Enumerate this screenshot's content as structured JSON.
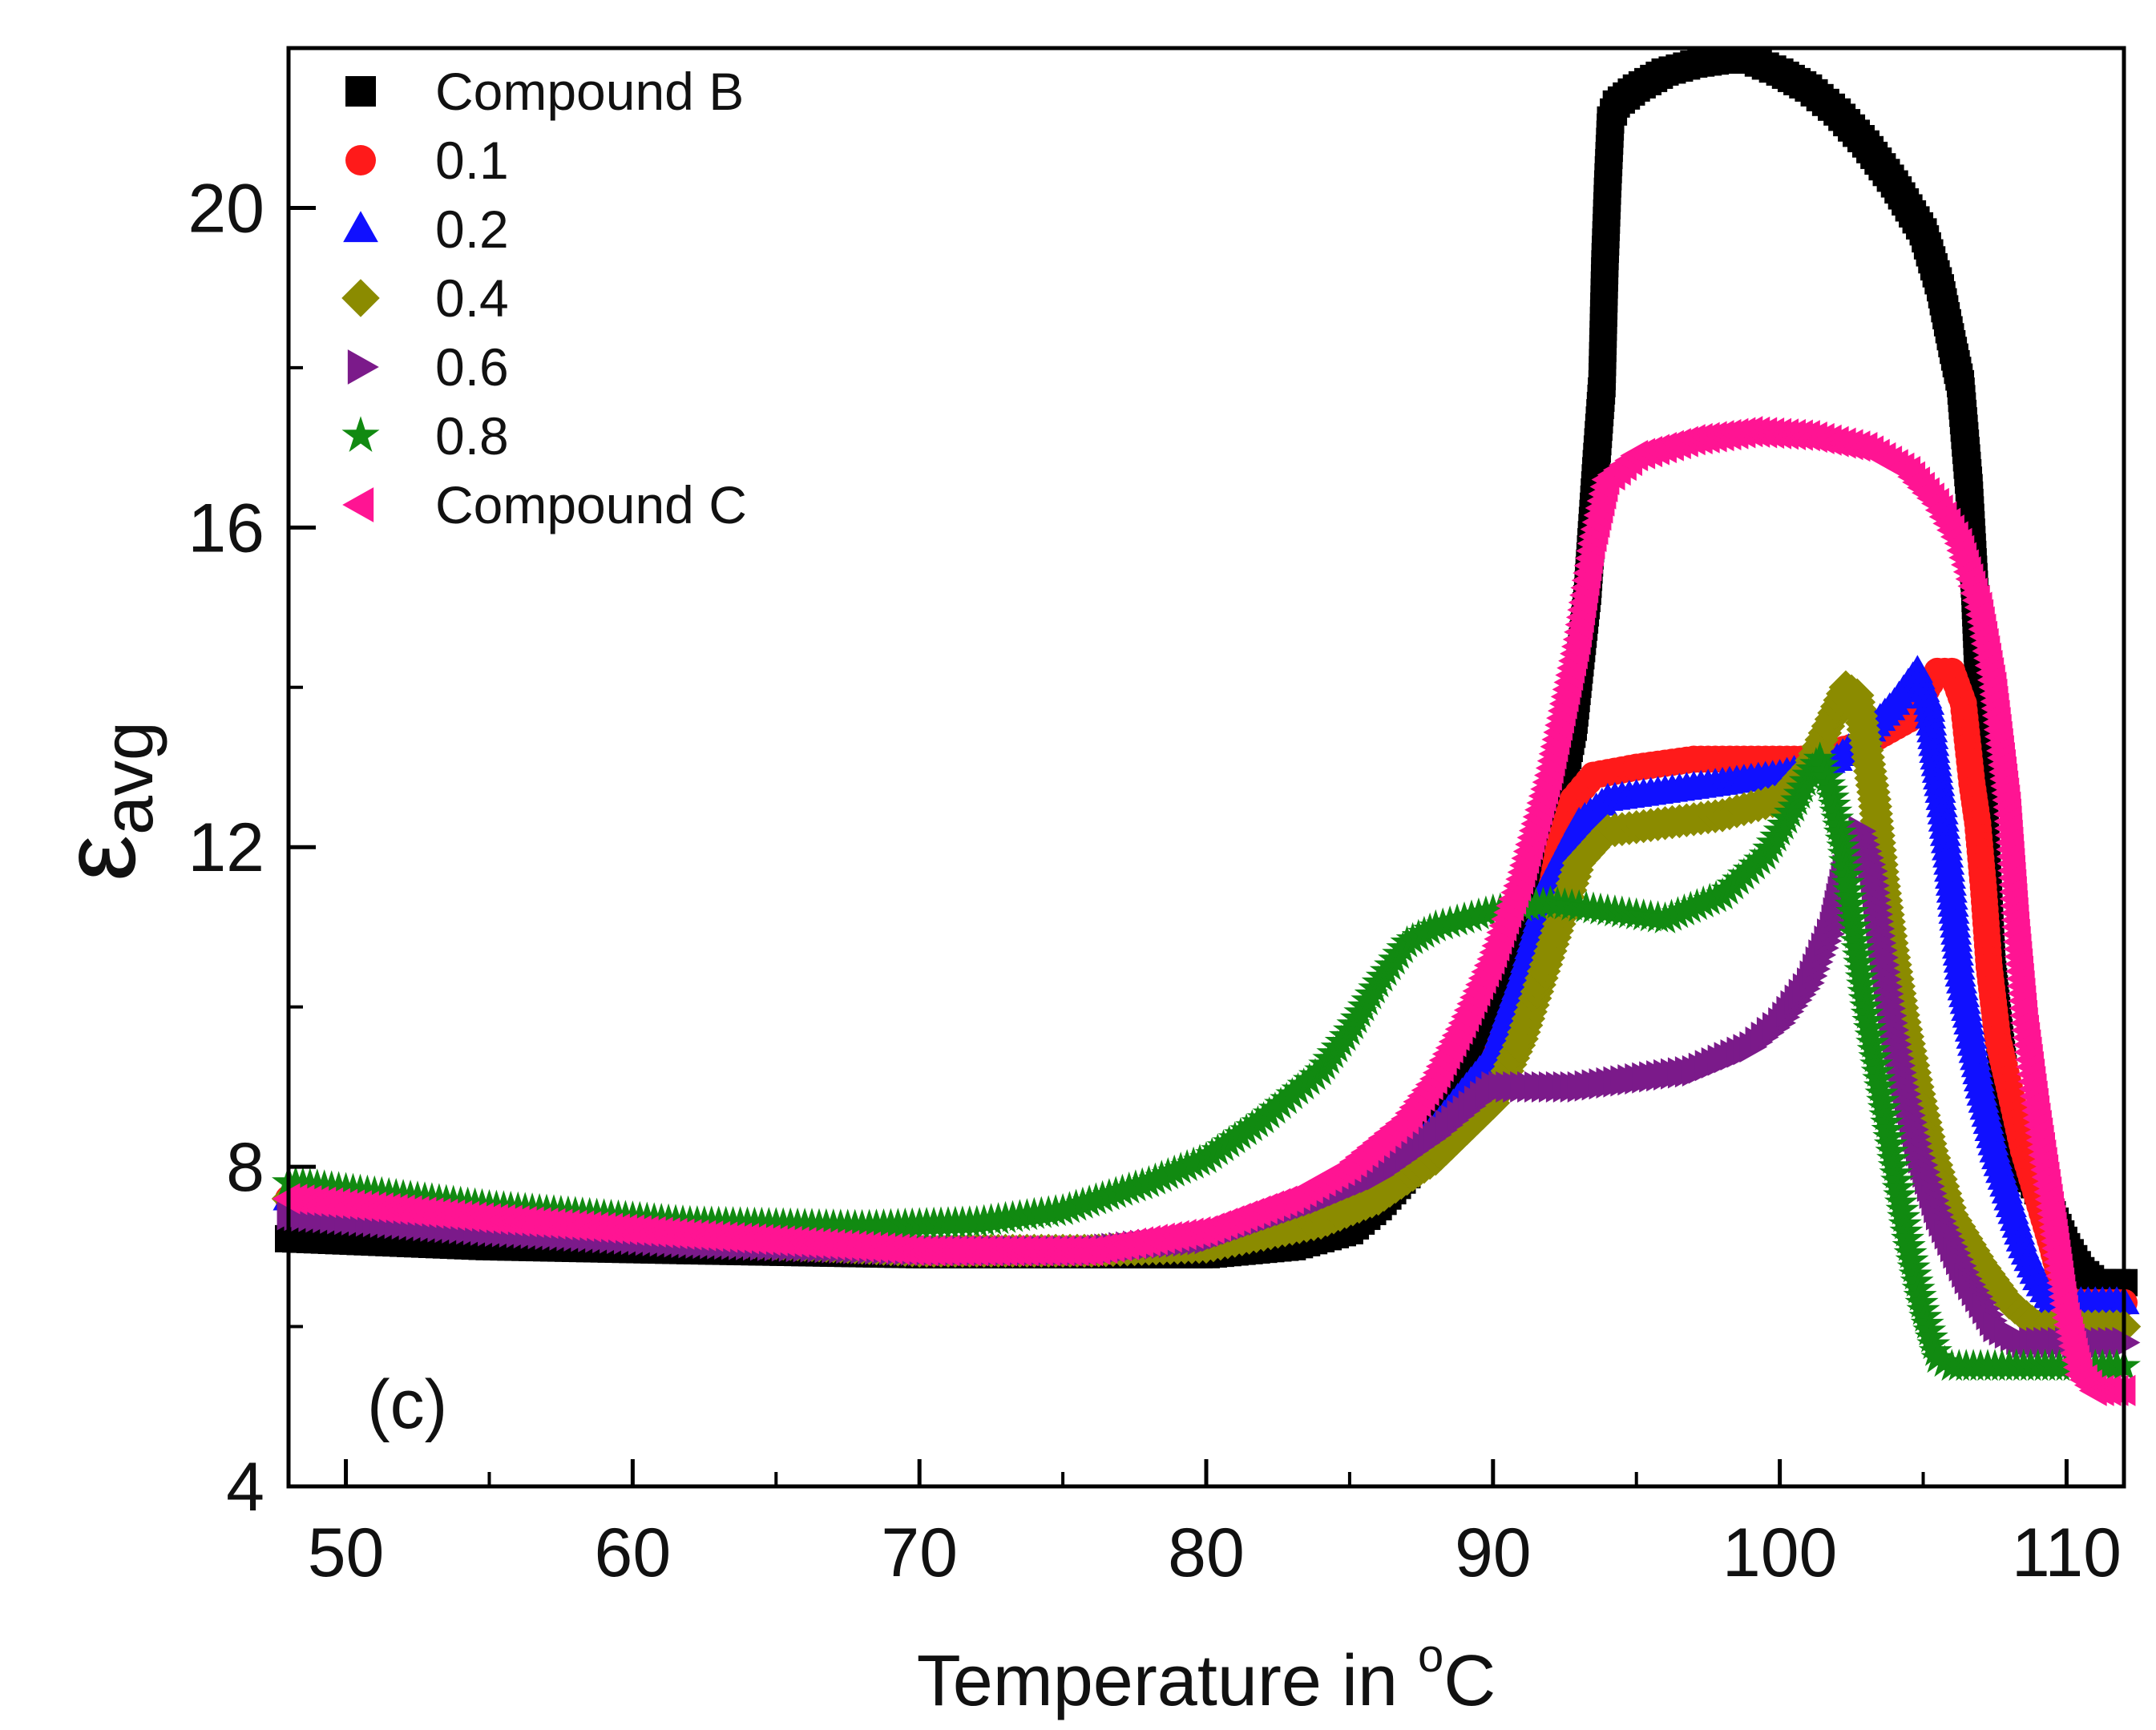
{
  "chart_data": {
    "type": "scatter",
    "title": "",
    "panel_label": "(c)",
    "xlabel": "Temperature in ",
    "xlabel_sup": "o",
    "xlabel_unit": "C",
    "ylabel_main": "ε",
    "ylabel_sub": "avg",
    "xlim": [
      48,
      112
    ],
    "ylim": [
      4,
      22.0
    ],
    "x_ticks": [
      50,
      60,
      70,
      80,
      90,
      100,
      110
    ],
    "y_ticks": [
      4,
      8,
      12,
      16,
      20
    ],
    "legend_position": "top-left",
    "series": [
      {
        "name": "Compound B",
        "marker": "square",
        "color": "#000000",
        "points": [
          [
            48,
            7.1
          ],
          [
            55,
            7.0
          ],
          [
            62,
            6.95
          ],
          [
            70,
            6.9
          ],
          [
            76,
            6.9
          ],
          [
            80,
            6.9
          ],
          [
            83,
            7.0
          ],
          [
            85,
            7.2
          ],
          [
            86,
            7.5
          ],
          [
            87,
            7.9
          ],
          [
            88,
            8.4
          ],
          [
            89,
            9.0
          ],
          [
            90,
            9.8
          ],
          [
            91,
            10.8
          ],
          [
            92,
            12.0
          ],
          [
            92.8,
            13.5
          ],
          [
            93.3,
            15.2
          ],
          [
            93.6,
            16.8
          ],
          [
            93.8,
            17.8
          ],
          [
            93.9,
            19.3
          ],
          [
            94.0,
            20.3
          ],
          [
            94.1,
            21.1
          ],
          [
            94.3,
            21.3
          ],
          [
            95,
            21.5
          ],
          [
            96,
            21.7
          ],
          [
            97,
            21.8
          ],
          [
            98,
            21.85
          ],
          [
            99,
            21.85
          ],
          [
            100,
            21.7
          ],
          [
            101,
            21.5
          ],
          [
            102,
            21.2
          ],
          [
            103,
            20.8
          ],
          [
            104,
            20.3
          ],
          [
            105,
            19.7
          ],
          [
            105.6,
            19.0
          ],
          [
            106.0,
            18.3
          ],
          [
            106.3,
            17.8
          ],
          [
            106.6,
            16.5
          ],
          [
            106.8,
            15.2
          ],
          [
            107.0,
            13.5
          ],
          [
            107.2,
            12.0
          ],
          [
            107.4,
            10.5
          ],
          [
            107.7,
            9.5
          ],
          [
            108,
            8.6
          ],
          [
            108.5,
            8.0
          ],
          [
            109,
            7.7
          ],
          [
            109.5,
            7.4
          ],
          [
            110,
            7.0
          ],
          [
            110.5,
            6.7
          ],
          [
            111,
            6.55
          ],
          [
            112,
            6.55
          ]
        ]
      },
      {
        "name": "0.1",
        "marker": "circle",
        "color": "#ff1a1a",
        "points": [
          [
            48,
            7.6
          ],
          [
            55,
            7.3
          ],
          [
            62,
            7.1
          ],
          [
            70,
            6.95
          ],
          [
            76,
            6.95
          ],
          [
            80,
            7.0
          ],
          [
            84,
            7.3
          ],
          [
            86,
            7.7
          ],
          [
            88,
            8.3
          ],
          [
            90,
            9.3
          ],
          [
            91,
            10.2
          ],
          [
            91.8,
            11.0
          ],
          [
            92.3,
            12.0
          ],
          [
            92.8,
            12.6
          ],
          [
            93.5,
            12.9
          ],
          [
            95,
            13.0
          ],
          [
            97,
            13.1
          ],
          [
            99,
            13.1
          ],
          [
            101,
            13.1
          ],
          [
            103,
            13.3
          ],
          [
            104.5,
            13.6
          ],
          [
            105.5,
            14.2
          ],
          [
            106.0,
            14.2
          ],
          [
            106.4,
            13.8
          ],
          [
            106.7,
            12.8
          ],
          [
            106.9,
            12.3
          ],
          [
            107.1,
            11.5
          ],
          [
            107.3,
            10.5
          ],
          [
            107.6,
            9.6
          ],
          [
            108,
            9.0
          ],
          [
            108.5,
            8.2
          ],
          [
            109,
            7.6
          ],
          [
            109.5,
            7.0
          ],
          [
            110,
            6.3
          ],
          [
            112,
            6.3
          ]
        ]
      },
      {
        "name": "0.2",
        "marker": "triangle-up",
        "color": "#1010ff",
        "points": [
          [
            48,
            7.6
          ],
          [
            55,
            7.3
          ],
          [
            62,
            7.1
          ],
          [
            70,
            6.95
          ],
          [
            76,
            6.95
          ],
          [
            80,
            7.0
          ],
          [
            84,
            7.4
          ],
          [
            86,
            7.8
          ],
          [
            88,
            8.5
          ],
          [
            90,
            9.4
          ],
          [
            91,
            10.4
          ],
          [
            92,
            11.6
          ],
          [
            93,
            12.3
          ],
          [
            94,
            12.6
          ],
          [
            96,
            12.7
          ],
          [
            98,
            12.8
          ],
          [
            100,
            12.9
          ],
          [
            102,
            13.1
          ],
          [
            103,
            13.4
          ],
          [
            104,
            13.8
          ],
          [
            104.8,
            14.2
          ],
          [
            105.2,
            13.8
          ],
          [
            105.4,
            13.2
          ],
          [
            105.6,
            12.7
          ],
          [
            105.9,
            11.8
          ],
          [
            106.1,
            11.1
          ],
          [
            106.3,
            10.4
          ],
          [
            106.6,
            9.8
          ],
          [
            107,
            9.0
          ],
          [
            107.5,
            8.2
          ],
          [
            108,
            7.6
          ],
          [
            108.5,
            7.0
          ],
          [
            109,
            6.6
          ],
          [
            109.5,
            6.3
          ],
          [
            112,
            6.3
          ]
        ]
      },
      {
        "name": "0.4",
        "marker": "diamond",
        "color": "#8b8b00",
        "points": [
          [
            48,
            7.6
          ],
          [
            55,
            7.3
          ],
          [
            62,
            7.1
          ],
          [
            70,
            6.95
          ],
          [
            76,
            6.95
          ],
          [
            80,
            7.0
          ],
          [
            84,
            7.3
          ],
          [
            86,
            7.6
          ],
          [
            88,
            8.1
          ],
          [
            90,
            8.8
          ],
          [
            91,
            9.6
          ],
          [
            92,
            10.7
          ],
          [
            93,
            11.8
          ],
          [
            94,
            12.2
          ],
          [
            96,
            12.3
          ],
          [
            98,
            12.4
          ],
          [
            100,
            12.6
          ],
          [
            101,
            13.0
          ],
          [
            101.8,
            13.6
          ],
          [
            102.3,
            14.0
          ],
          [
            102.7,
            13.9
          ],
          [
            103.0,
            13.3
          ],
          [
            103.3,
            12.6
          ],
          [
            103.6,
            11.6
          ],
          [
            103.9,
            10.8
          ],
          [
            104.3,
            9.9
          ],
          [
            104.8,
            9.0
          ],
          [
            105.3,
            8.2
          ],
          [
            106,
            7.4
          ],
          [
            107,
            6.8
          ],
          [
            108,
            6.3
          ],
          [
            109,
            6.0
          ],
          [
            112,
            6.0
          ]
        ]
      },
      {
        "name": "0.6",
        "marker": "triangle-right",
        "color": "#7b1a8a",
        "points": [
          [
            48,
            7.4
          ],
          [
            55,
            7.2
          ],
          [
            62,
            7.05
          ],
          [
            70,
            6.95
          ],
          [
            76,
            6.95
          ],
          [
            80,
            7.1
          ],
          [
            84,
            7.6
          ],
          [
            86,
            7.9
          ],
          [
            88,
            8.4
          ],
          [
            89,
            8.7
          ],
          [
            90,
            9.0
          ],
          [
            91,
            9.0
          ],
          [
            93,
            9.0
          ],
          [
            95,
            9.1
          ],
          [
            97,
            9.2
          ],
          [
            99,
            9.5
          ],
          [
            100,
            9.8
          ],
          [
            101,
            10.3
          ],
          [
            101.8,
            11.0
          ],
          [
            102.3,
            11.8
          ],
          [
            102.8,
            12.2
          ],
          [
            103.2,
            11.7
          ],
          [
            103.5,
            10.8
          ],
          [
            103.9,
            9.8
          ],
          [
            104.3,
            9.0
          ],
          [
            104.8,
            8.2
          ],
          [
            105.5,
            7.4
          ],
          [
            106.5,
            6.6
          ],
          [
            107.5,
            6.0
          ],
          [
            108.5,
            5.8
          ],
          [
            112,
            5.8
          ]
        ]
      },
      {
        "name": "0.8",
        "marker": "star",
        "color": "#118a11",
        "points": [
          [
            48,
            7.8
          ],
          [
            55,
            7.5
          ],
          [
            62,
            7.3
          ],
          [
            68,
            7.25
          ],
          [
            72,
            7.3
          ],
          [
            75,
            7.45
          ],
          [
            78,
            7.8
          ],
          [
            80,
            8.1
          ],
          [
            82,
            8.6
          ],
          [
            84,
            9.2
          ],
          [
            85,
            9.7
          ],
          [
            86,
            10.3
          ],
          [
            87,
            10.8
          ],
          [
            88,
            11.0
          ],
          [
            90,
            11.2
          ],
          [
            92,
            11.3
          ],
          [
            94,
            11.2
          ],
          [
            96,
            11.1
          ],
          [
            98,
            11.4
          ],
          [
            99.5,
            11.9
          ],
          [
            100.5,
            12.5
          ],
          [
            101,
            12.9
          ],
          [
            101.4,
            13.1
          ],
          [
            101.8,
            12.7
          ],
          [
            102.2,
            12.0
          ],
          [
            102.6,
            11.0
          ],
          [
            103,
            10.0
          ],
          [
            103.5,
            9.0
          ],
          [
            104,
            8.0
          ],
          [
            104.5,
            7.0
          ],
          [
            105,
            6.2
          ],
          [
            105.5,
            5.6
          ],
          [
            106,
            5.5
          ],
          [
            112,
            5.5
          ]
        ]
      },
      {
        "name": "Compound C",
        "marker": "triangle-left",
        "color": "#ff1493",
        "points": [
          [
            48,
            7.6
          ],
          [
            55,
            7.35
          ],
          [
            62,
            7.15
          ],
          [
            70,
            6.95
          ],
          [
            76,
            6.95
          ],
          [
            80,
            7.2
          ],
          [
            83,
            7.6
          ],
          [
            85,
            8.0
          ],
          [
            87,
            8.6
          ],
          [
            88,
            9.1
          ],
          [
            89,
            9.8
          ],
          [
            90,
            10.6
          ],
          [
            91,
            11.6
          ],
          [
            92,
            12.9
          ],
          [
            93,
            14.6
          ],
          [
            93.5,
            15.8
          ],
          [
            94,
            16.6
          ],
          [
            95,
            16.9
          ],
          [
            97,
            17.1
          ],
          [
            99,
            17.2
          ],
          [
            101,
            17.15
          ],
          [
            103,
            17.0
          ],
          [
            104.5,
            16.7
          ],
          [
            105.5,
            16.3
          ],
          [
            106.3,
            15.8
          ],
          [
            107,
            15.0
          ],
          [
            107.5,
            14.0
          ],
          [
            108,
            12.5
          ],
          [
            108.3,
            11.0
          ],
          [
            108.6,
            9.8
          ],
          [
            109,
            8.7
          ],
          [
            109.5,
            7.5
          ],
          [
            110,
            6.2
          ],
          [
            110.5,
            5.4
          ],
          [
            111,
            5.2
          ],
          [
            112,
            5.2
          ]
        ]
      }
    ]
  }
}
